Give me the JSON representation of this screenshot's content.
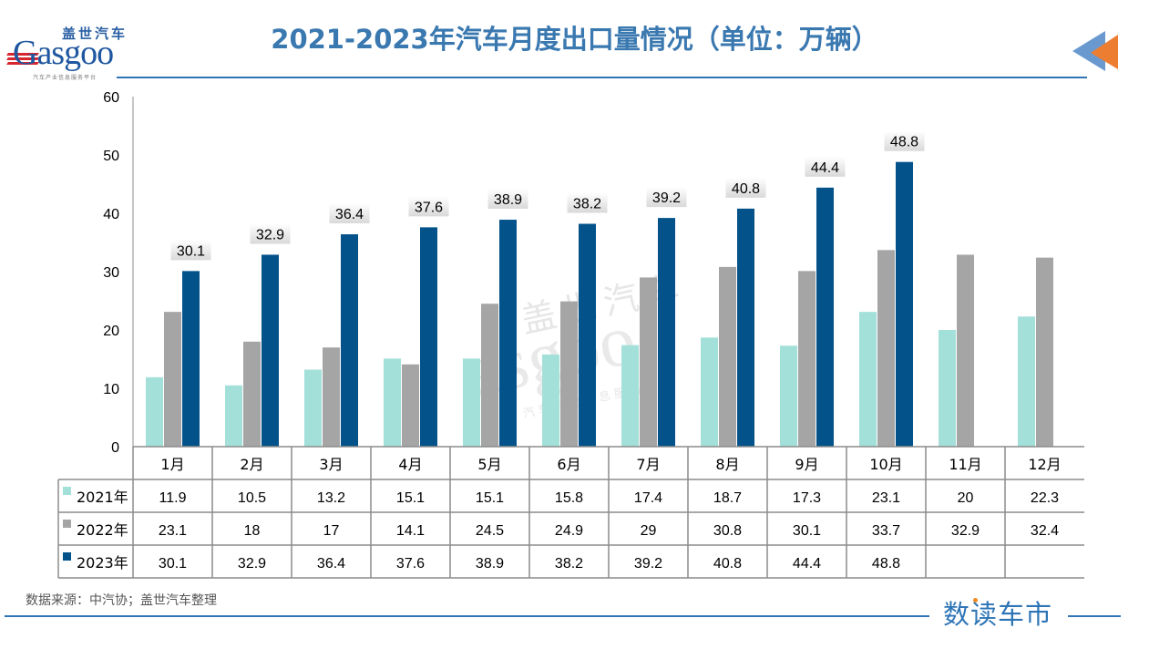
{
  "header": {
    "title": "2021-2023年汽车月度出口量情况（单位：万辆）",
    "logo_cn": "盖世汽车",
    "logo_en": "Gasgoo",
    "logo_sub": "汽车产业信息服务平台"
  },
  "footer": {
    "source": "数据来源：中汽协；盖世汽车整理",
    "brand": "数读车市"
  },
  "watermark": {
    "cn": "盖世汽车",
    "en": "asgoo",
    "sub": "汽车产业信息服务平台"
  },
  "colors": {
    "series_2021": "#a3e0d9",
    "series_2022": "#a5a5a5",
    "series_2023": "#03528a",
    "title": "#3a78b0",
    "rule": "#2e75b6",
    "arrow_blue": "#6a99cf",
    "arrow_orange": "#ed7d31"
  },
  "chart_data": {
    "type": "bar",
    "title": "2021-2023年汽车月度出口量情况（单位：万辆）",
    "xlabel": "",
    "ylabel": "",
    "ylim": [
      0,
      60
    ],
    "yticks": [
      0,
      10,
      20,
      30,
      40,
      50,
      60
    ],
    "grid": false,
    "legend": "data-table-left",
    "categories": [
      "1月",
      "2月",
      "3月",
      "4月",
      "5月",
      "6月",
      "7月",
      "8月",
      "9月",
      "10月",
      "11月",
      "12月"
    ],
    "series": [
      {
        "name": "2021年",
        "values": [
          11.9,
          10.5,
          13.2,
          15.1,
          15.1,
          15.8,
          17.4,
          18.7,
          17.3,
          23.1,
          20,
          22.3
        ],
        "labels": false
      },
      {
        "name": "2022年",
        "values": [
          23.1,
          18,
          17,
          14.1,
          24.5,
          24.9,
          29,
          30.8,
          30.1,
          33.7,
          32.9,
          32.4
        ],
        "labels": false
      },
      {
        "name": "2023年",
        "values": [
          30.1,
          32.9,
          36.4,
          37.6,
          38.9,
          38.2,
          39.2,
          40.8,
          44.4,
          48.8,
          null,
          null
        ],
        "labels": true
      }
    ],
    "table_display": [
      [
        "11.9",
        "10.5",
        "13.2",
        "15.1",
        "15.1",
        "15.8",
        "17.4",
        "18.7",
        "17.3",
        "23.1",
        "20",
        "22.3"
      ],
      [
        "23.1",
        "18",
        "17",
        "14.1",
        "24.5",
        "24.9",
        "29",
        "30.8",
        "30.1",
        "33.7",
        "32.9",
        "32.4"
      ],
      [
        "30.1",
        "32.9",
        "36.4",
        "37.6",
        "38.9",
        "38.2",
        "39.2",
        "40.8",
        "44.4",
        "48.8",
        "",
        ""
      ]
    ]
  }
}
